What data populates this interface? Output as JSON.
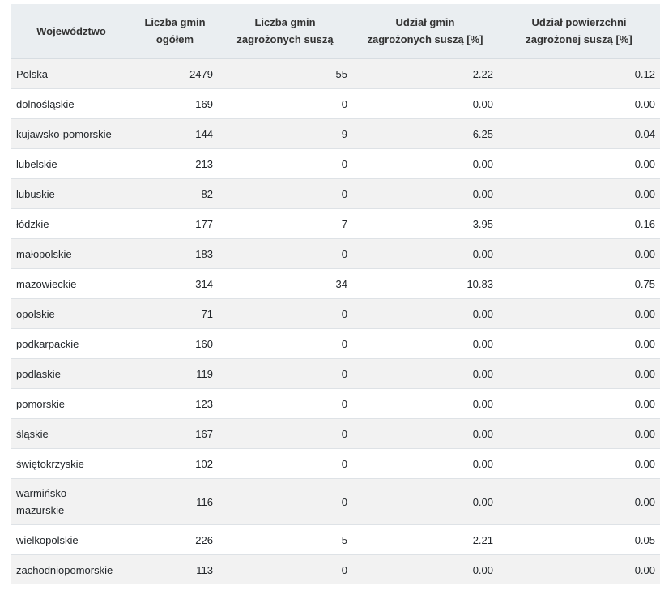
{
  "table": {
    "headers": {
      "province": "Województwo",
      "total_line1": "Liczba gmin",
      "total_line2": "ogółem",
      "threatened_line1": "Liczba gmin",
      "threatened_line2": "zagrożonych suszą",
      "share_line1": "Udział gmin",
      "share_line2": "zagrożonych suszą [%]",
      "area_line1": "Udział powierzchni",
      "area_line2": "zagrożonej suszą [%]"
    },
    "rows": [
      {
        "name": "Polska",
        "total": "2479",
        "threatened": "55",
        "share": "2.22",
        "area": "0.12"
      },
      {
        "name": "dolnośląskie",
        "total": "169",
        "threatened": "0",
        "share": "0.00",
        "area": "0.00"
      },
      {
        "name": "kujawsko-pomorskie",
        "total": "144",
        "threatened": "9",
        "share": "6.25",
        "area": "0.04"
      },
      {
        "name": "lubelskie",
        "total": "213",
        "threatened": "0",
        "share": "0.00",
        "area": "0.00"
      },
      {
        "name": "lubuskie",
        "total": "82",
        "threatened": "0",
        "share": "0.00",
        "area": "0.00"
      },
      {
        "name": "łódzkie",
        "total": "177",
        "threatened": "7",
        "share": "3.95",
        "area": "0.16"
      },
      {
        "name": "małopolskie",
        "total": "183",
        "threatened": "0",
        "share": "0.00",
        "area": "0.00"
      },
      {
        "name": "mazowieckie",
        "total": "314",
        "threatened": "34",
        "share": "10.83",
        "area": "0.75"
      },
      {
        "name": "opolskie",
        "total": "71",
        "threatened": "0",
        "share": "0.00",
        "area": "0.00"
      },
      {
        "name": "podkarpackie",
        "total": "160",
        "threatened": "0",
        "share": "0.00",
        "area": "0.00"
      },
      {
        "name": "podlaskie",
        "total": "119",
        "threatened": "0",
        "share": "0.00",
        "area": "0.00"
      },
      {
        "name": "pomorskie",
        "total": "123",
        "threatened": "0",
        "share": "0.00",
        "area": "0.00"
      },
      {
        "name": "śląskie",
        "total": "167",
        "threatened": "0",
        "share": "0.00",
        "area": "0.00"
      },
      {
        "name": "świętokrzyskie",
        "total": "102",
        "threatened": "0",
        "share": "0.00",
        "area": "0.00"
      },
      {
        "name_line1": "warmińsko-",
        "name_line2": "mazurskie",
        "total": "116",
        "threatened": "0",
        "share": "0.00",
        "area": "0.00"
      },
      {
        "name": "wielkopolskie",
        "total": "226",
        "threatened": "5",
        "share": "2.21",
        "area": "0.05"
      },
      {
        "name": "zachodniopomorskie",
        "total": "113",
        "threatened": "0",
        "share": "0.00",
        "area": "0.00"
      }
    ]
  }
}
